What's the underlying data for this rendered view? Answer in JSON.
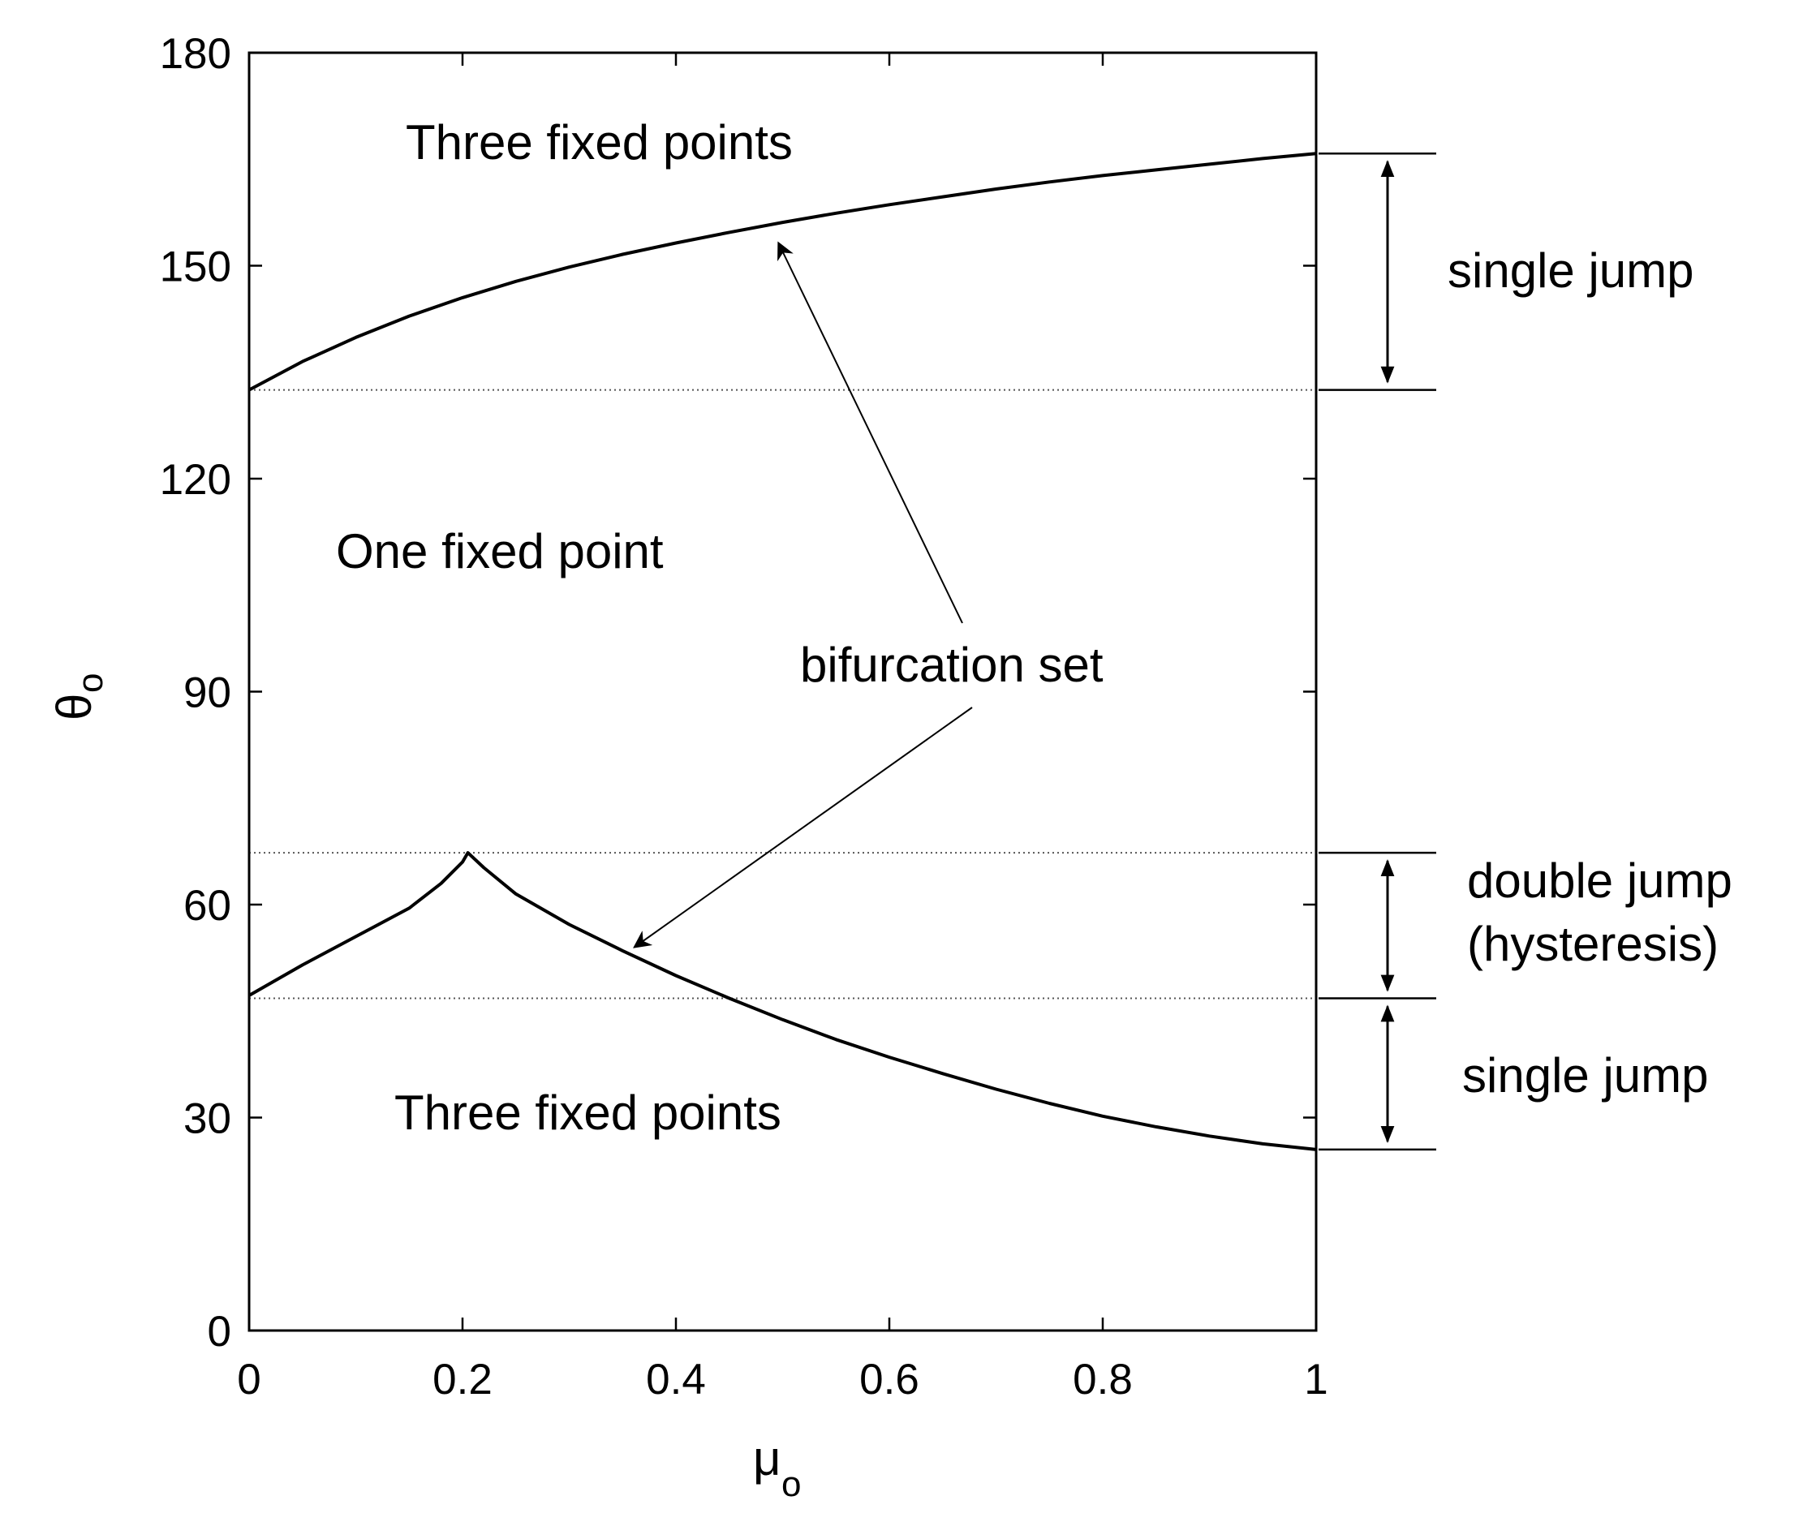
{
  "chart_data": {
    "type": "line",
    "title": "",
    "xlabel": "μ",
    "xlabel_subscript": "o",
    "ylabel": "θ",
    "ylabel_subscript": "o",
    "xlim": [
      0,
      1
    ],
    "ylim": [
      0,
      180
    ],
    "xticks": [
      0,
      0.2,
      0.4,
      0.6,
      0.8,
      1
    ],
    "xtick_labels": [
      "0",
      "0.2",
      "0.4",
      "0.6",
      "0.8",
      "1"
    ],
    "yticks": [
      0,
      30,
      60,
      90,
      120,
      150,
      180
    ],
    "ytick_labels": [
      "0",
      "30",
      "60",
      "90",
      "120",
      "150",
      "180"
    ],
    "grid": false,
    "series": [
      {
        "x": [
          0,
          0.05,
          0.1,
          0.15,
          0.2,
          0.25,
          0.3,
          0.35,
          0.4,
          0.45,
          0.5,
          0.55,
          0.6,
          0.65,
          0.7,
          0.75,
          0.8,
          0.85,
          0.9,
          0.95,
          1.0
        ],
        "y": [
          132.5,
          136.5,
          139.9,
          142.9,
          145.5,
          147.8,
          149.8,
          151.6,
          153.2,
          154.7,
          156.1,
          157.4,
          158.6,
          159.7,
          160.8,
          161.8,
          162.7,
          163.5,
          164.3,
          165.1,
          165.8
        ]
      },
      {
        "x": [
          0,
          0.05,
          0.1,
          0.15,
          0.18,
          0.2,
          0.205,
          0.22,
          0.25,
          0.3,
          0.35,
          0.4,
          0.45,
          0.5,
          0.55,
          0.6,
          0.65,
          0.7,
          0.75,
          0.8,
          0.85,
          0.9,
          0.95,
          1.0
        ],
        "y": [
          47.2,
          51.5,
          55.5,
          59.5,
          63.0,
          66.0,
          67.3,
          65.2,
          61.5,
          57.2,
          53.5,
          50.0,
          46.8,
          43.8,
          41.0,
          38.5,
          36.2,
          34.0,
          32.0,
          30.2,
          28.7,
          27.4,
          26.3,
          25.5
        ]
      }
    ],
    "reference_levels": [
      132.5,
      67.3,
      46.8
    ],
    "annotations": {
      "region_top": "Three fixed points",
      "region_middle": "One fixed point",
      "region_bottom": "Three fixed points",
      "pointer": "bifurcation set",
      "range_upper": "single jump",
      "range_middle_line1": "double jump",
      "range_middle_line2": "(hysteresis)",
      "range_lower": "single jump"
    },
    "range_markers": [
      {
        "from": 132.5,
        "to": 165.8,
        "label_key": "range_upper"
      },
      {
        "from": 46.8,
        "to": 67.3,
        "label_key": "range_middle_line1"
      },
      {
        "from": 25.5,
        "to": 46.8,
        "label_key": "range_lower"
      }
    ],
    "pointer_targets": [
      {
        "x": 0.49,
        "y": 154.8
      },
      {
        "x": 0.355,
        "y": 54.0
      }
    ]
  }
}
